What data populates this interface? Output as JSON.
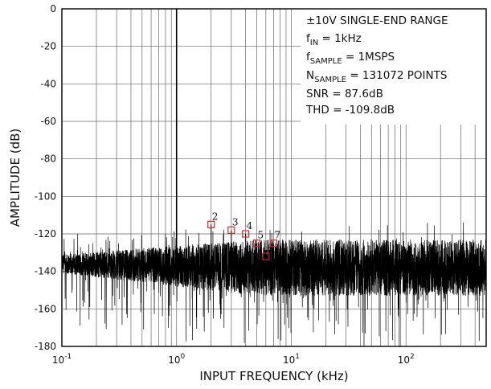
{
  "chart_data": {
    "type": "line",
    "xlabel": "INPUT FREQUENCY (kHz)",
    "ylabel": "AMPLITUDE (dB)",
    "x_scale": "log",
    "xlim": [
      0.1,
      500
    ],
    "ylim": [
      -180,
      0
    ],
    "x_ticks": [
      {
        "value": 0.1,
        "base": "10",
        "exp": "-1"
      },
      {
        "value": 1,
        "base": "10",
        "exp": "0"
      },
      {
        "value": 10,
        "base": "10",
        "exp": "1"
      },
      {
        "value": 100,
        "base": "10",
        "exp": "2"
      }
    ],
    "y_ticks": [
      "0",
      "-20",
      "-40",
      "-60",
      "-80",
      "-100",
      "-120",
      "-140",
      "-160",
      "-180"
    ],
    "y_tick_values": [
      0,
      -20,
      -40,
      -60,
      -80,
      -100,
      -120,
      -140,
      -160,
      -180
    ],
    "grid": true,
    "fundamental": {
      "x": 1,
      "y": 0
    },
    "noise_floor_db": -135,
    "harmonics": [
      {
        "label": "2",
        "x": 2,
        "y": -115
      },
      {
        "label": "3",
        "x": 3,
        "y": -118
      },
      {
        "label": "4",
        "x": 4,
        "y": -120
      },
      {
        "label": "5",
        "x": 5,
        "y": -125
      },
      {
        "label": "6",
        "x": 6,
        "y": -132
      },
      {
        "label": "7",
        "x": 7,
        "y": -125
      }
    ],
    "annotations": {
      "range": "±10V SINGLE-END RANGE",
      "fin_main": "f",
      "fin_sub": "IN",
      "fin_value": " = 1kHz",
      "fsample_main": "f",
      "fsample_sub": "SAMPLE",
      "fsample_value": " = 1MSPS",
      "nsample_main": "N",
      "nsample_sub": "SAMPLE",
      "nsample_value": " = 131072 POINTS",
      "snr": "SNR = 87.6dB",
      "thd": "THD = -109.8dB"
    },
    "colors": {
      "trace": "#000000",
      "grid": "#666666",
      "marker": "#d62728"
    }
  }
}
